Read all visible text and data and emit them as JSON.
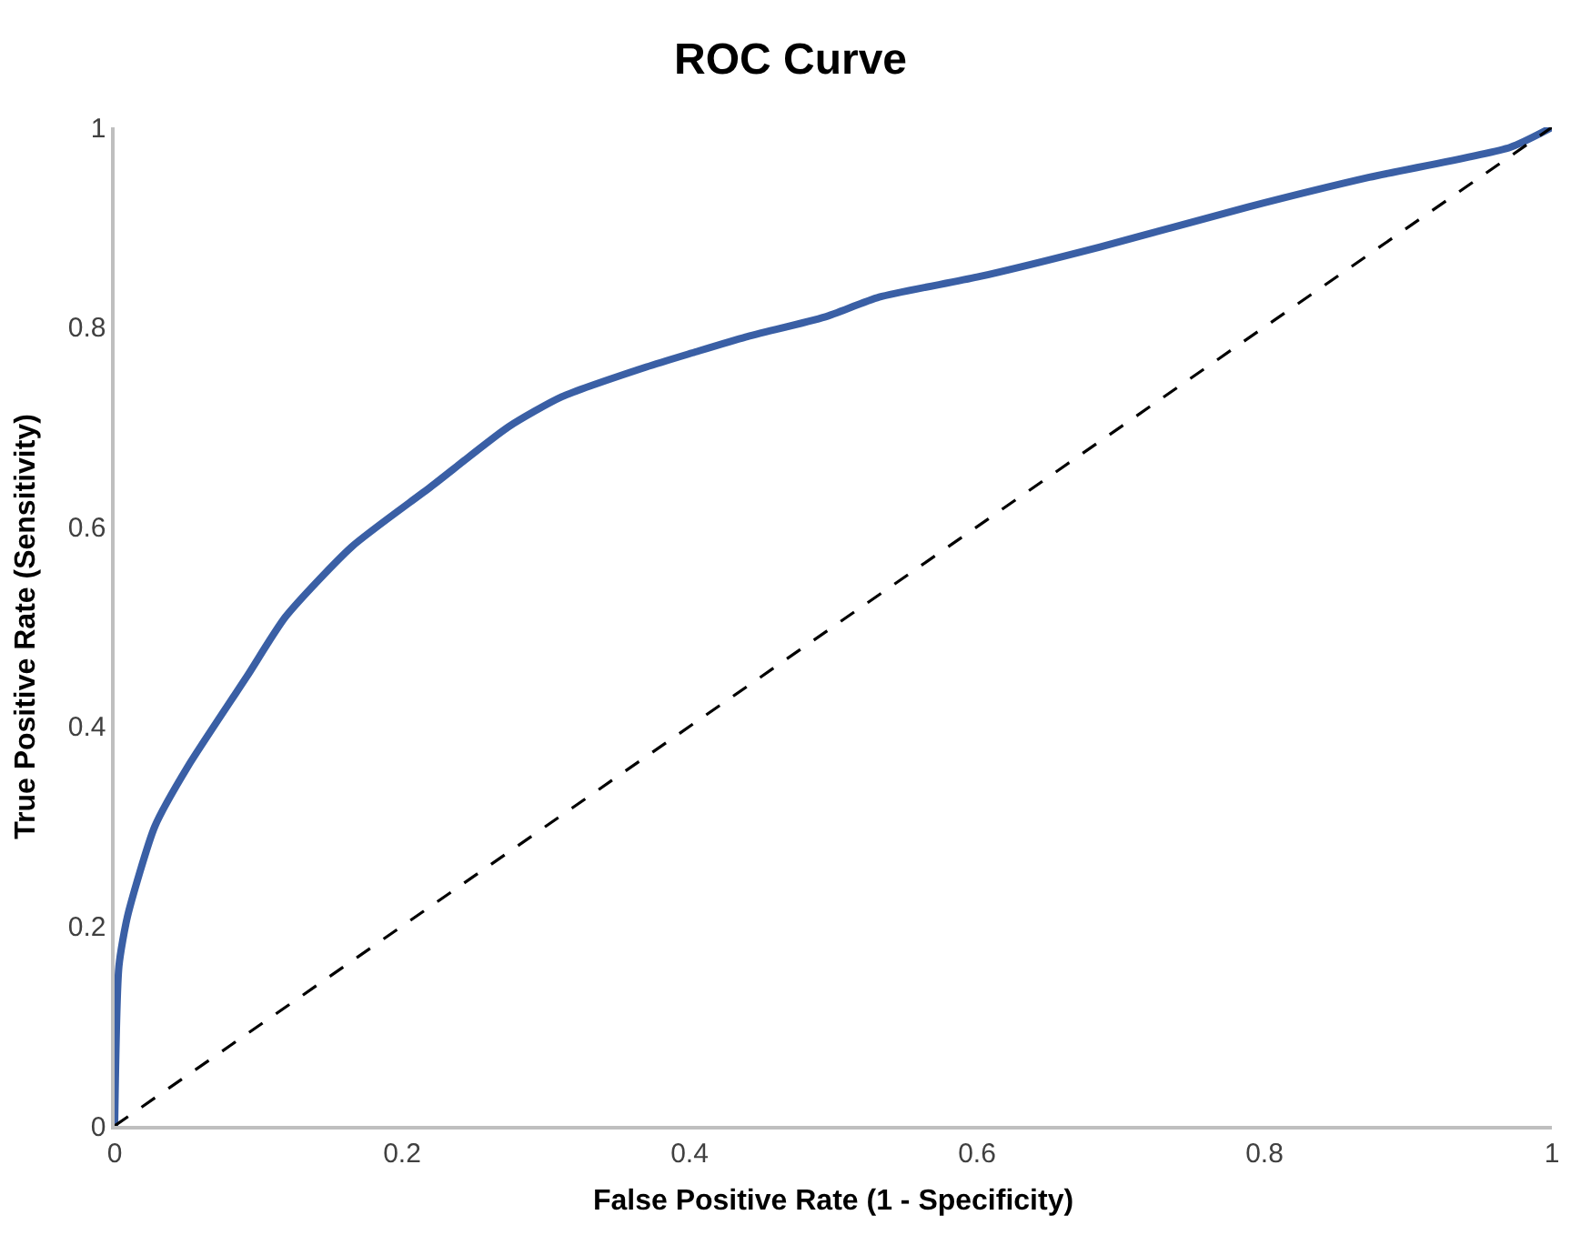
{
  "chart_data": {
    "type": "line",
    "title": "ROC Curve",
    "xlabel": "False Positive Rate (1 - Specificity)",
    "ylabel": "True Positive Rate (Sensitivity)",
    "xlim": [
      0,
      1
    ],
    "ylim": [
      0,
      1
    ],
    "xticks": [
      0,
      {
        "value": 0.2,
        "label": "0.2"
      },
      {
        "value": 0.4,
        "label": "0.4"
      },
      {
        "value": 0.6,
        "label": "0.6"
      },
      {
        "value": 0.8,
        "label": "0.8"
      },
      1
    ],
    "yticks": [
      0,
      {
        "value": 0.2,
        "label": "0.2"
      },
      {
        "value": 0.4,
        "label": "0.4"
      },
      {
        "value": 0.6,
        "label": "0.6"
      },
      {
        "value": 0.8,
        "label": "0.8"
      },
      1
    ],
    "marker": "none",
    "series": [
      {
        "color": "#3a5fa5",
        "line_style": "solid",
        "x": [
          0,
          0.003,
          0.009,
          0.028,
          0.051,
          0.092,
          0.119,
          0.165,
          0.22,
          0.274,
          0.311,
          0.37,
          0.404,
          0.439,
          0.494,
          0.532,
          0.6,
          0.685,
          0.788,
          0.873,
          0.971,
          1
        ],
        "values": [
          0,
          0.16,
          0.21,
          0.3,
          0.36,
          0.45,
          0.51,
          0.58,
          0.64,
          0.7,
          0.73,
          0.76,
          0.775,
          0.79,
          0.81,
          0.83,
          0.85,
          0.88,
          0.92,
          0.95,
          0.98,
          1
        ]
      },
      {
        "color": "#000000",
        "line_style": "dashed",
        "x": [
          0,
          1
        ],
        "values": [
          0,
          1
        ]
      }
    ]
  }
}
